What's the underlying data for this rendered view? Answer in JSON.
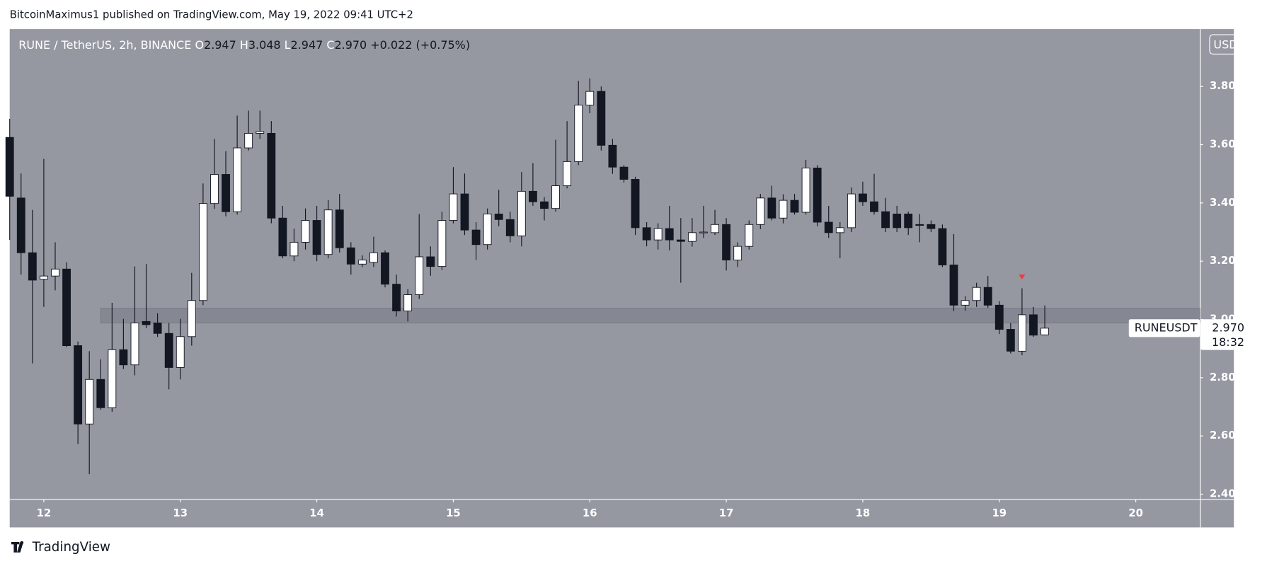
{
  "header": "BitcoinMaximus1 published on TradingView.com, May 19, 2022 09:41 UTC+2",
  "footer": "TradingView",
  "chart_data": {
    "type": "candlestick",
    "legend": {
      "symbol": "RUNE / TetherUS, 2h, BINANCE",
      "ohlc": [
        {
          "key": "O",
          "value": "2.947"
        },
        {
          "key": "H",
          "value": "3.048"
        },
        {
          "key": "L",
          "value": "2.947"
        },
        {
          "key": "C",
          "value": "2.970"
        }
      ],
      "change": "+0.022 (+0.75%)"
    },
    "currency": "USDT",
    "last_price_label": {
      "name": "RUNEUSDT",
      "value": "2.970",
      "countdown": "18:32"
    },
    "up_color": "#ffffff",
    "down_color": "#131722",
    "background": "#9598a1",
    "xlim": [
      11.75,
      20.47
    ],
    "xticks": [
      12,
      13,
      14,
      15,
      16,
      17,
      18,
      19,
      20
    ],
    "ylim": [
      2.383,
      3.997
    ],
    "yticks": [
      {
        "value": 2.4,
        "label": "2.400"
      },
      {
        "value": 2.6,
        "label": "2.600"
      },
      {
        "value": 2.8,
        "label": "2.800"
      },
      {
        "value": 3.0,
        "label": "3.000"
      },
      {
        "value": 3.2,
        "label": "3.200"
      },
      {
        "value": 3.4,
        "label": "3.400"
      },
      {
        "value": 3.6,
        "label": "3.600"
      },
      {
        "value": 3.8,
        "label": "3.800"
      }
    ],
    "zone": {
      "x_start": 12.4167,
      "low": 2.988,
      "high": 3.038,
      "color": "#787b86"
    },
    "marker": {
      "x": 19.1667,
      "y": 3.146,
      "color": "#f23645"
    },
    "x": [
      11.75,
      11.8333,
      11.9167,
      12,
      12.0833,
      12.1667,
      12.25,
      12.3333,
      12.4167,
      12.5,
      12.5833,
      12.6667,
      12.75,
      12.8333,
      12.9167,
      13,
      13.0833,
      13.1667,
      13.25,
      13.3333,
      13.4167,
      13.5,
      13.5833,
      13.6667,
      13.75,
      13.8333,
      13.9167,
      14,
      14.0833,
      14.1667,
      14.25,
      14.3333,
      14.4167,
      14.5,
      14.5833,
      14.6667,
      14.75,
      14.8333,
      14.9167,
      15,
      15.0833,
      15.1667,
      15.25,
      15.3333,
      15.4167,
      15.5,
      15.5833,
      15.6667,
      15.75,
      15.8333,
      15.9167,
      16,
      16.0833,
      16.1667,
      16.25,
      16.3333,
      16.4167,
      16.5,
      16.5833,
      16.6667,
      16.75,
      16.8333,
      16.9167,
      17,
      17.0833,
      17.1667,
      17.25,
      17.3333,
      17.4167,
      17.5,
      17.5833,
      17.6667,
      17.75,
      17.8333,
      17.9167,
      18,
      18.0833,
      18.1667,
      18.25,
      18.3333,
      18.4167,
      18.5,
      18.5833,
      18.6667,
      18.75,
      18.8333,
      18.9167,
      19,
      19.0833,
      19.1667,
      19.25,
      19.3333
    ],
    "open": [
      3.625,
      3.417,
      3.229,
      3.138,
      3.149,
      3.173,
      2.91,
      2.641,
      2.794,
      2.697,
      2.896,
      2.844,
      2.993,
      2.988,
      2.952,
      2.835,
      2.941,
      3.065,
      3.398,
      3.498,
      3.37,
      3.589,
      3.639,
      3.639,
      3.348,
      3.218,
      3.265,
      3.34,
      3.223,
      3.376,
      3.246,
      3.19,
      3.196,
      3.229,
      3.121,
      3.029,
      3.085,
      3.215,
      3.182,
      3.34,
      3.431,
      3.307,
      3.257,
      3.362,
      3.343,
      3.287,
      3.44,
      3.404,
      3.381,
      3.459,
      3.542,
      3.736,
      3.783,
      3.598,
      3.523,
      3.481,
      3.315,
      3.273,
      3.312,
      3.273,
      3.268,
      3.298,
      3.298,
      3.326,
      3.204,
      3.251,
      3.326,
      3.417,
      3.348,
      3.409,
      3.368,
      3.52,
      3.334,
      3.298,
      3.315,
      3.431,
      3.404,
      3.37,
      3.362,
      3.362,
      3.326,
      3.326,
      3.312,
      3.187,
      3.049,
      3.065,
      3.11,
      3.049,
      2.966,
      2.891,
      3.016,
      2.947
    ],
    "high": [
      3.689,
      3.501,
      3.376,
      3.551,
      3.265,
      3.196,
      2.924,
      2.891,
      2.863,
      3.057,
      3.002,
      3.182,
      3.19,
      3.021,
      2.988,
      3.002,
      3.16,
      3.467,
      3.62,
      3.578,
      3.7,
      3.717,
      3.717,
      3.681,
      3.39,
      3.312,
      3.381,
      3.39,
      3.41,
      3.431,
      3.265,
      3.22,
      3.284,
      3.237,
      3.154,
      3.104,
      3.362,
      3.251,
      3.37,
      3.523,
      3.501,
      3.334,
      3.381,
      3.445,
      3.37,
      3.506,
      3.537,
      3.42,
      3.617,
      3.681,
      3.819,
      3.828,
      3.8,
      3.62,
      3.53,
      3.49,
      3.334,
      3.33,
      3.39,
      3.348,
      3.348,
      3.39,
      3.376,
      3.348,
      3.265,
      3.34,
      3.431,
      3.459,
      3.43,
      3.431,
      3.548,
      3.53,
      3.39,
      3.334,
      3.453,
      3.473,
      3.5,
      3.417,
      3.39,
      3.37,
      3.362,
      3.34,
      3.326,
      3.293,
      3.08,
      3.126,
      3.149,
      3.063,
      2.988,
      3.107,
      3.043,
      3.048
    ],
    "low": [
      3.273,
      3.154,
      2.849,
      3.043,
      3.1,
      2.905,
      2.572,
      2.469,
      2.69,
      2.683,
      2.83,
      2.808,
      2.97,
      2.94,
      2.76,
      2.794,
      2.91,
      3.049,
      3.38,
      3.354,
      3.36,
      3.58,
      3.62,
      3.33,
      3.21,
      3.2,
      3.24,
      3.2,
      3.21,
      3.23,
      3.154,
      3.18,
      3.18,
      3.11,
      3.01,
      2.993,
      3.07,
      3.15,
      3.17,
      3.33,
      3.29,
      3.204,
      3.24,
      3.32,
      3.265,
      3.251,
      3.39,
      3.34,
      3.37,
      3.45,
      3.53,
      3.708,
      3.58,
      3.5,
      3.47,
      3.29,
      3.251,
      3.24,
      3.237,
      3.126,
      3.25,
      3.28,
      3.29,
      3.168,
      3.18,
      3.24,
      3.31,
      3.34,
      3.33,
      3.36,
      3.36,
      3.32,
      3.28,
      3.21,
      3.3,
      3.39,
      3.36,
      3.3,
      3.3,
      3.29,
      3.265,
      3.3,
      3.18,
      3.029,
      3.03,
      3.043,
      3.04,
      2.95,
      2.883,
      2.877,
      2.94,
      2.947
    ],
    "close": [
      3.423,
      3.229,
      3.135,
      3.149,
      3.173,
      2.91,
      2.641,
      2.794,
      2.697,
      2.896,
      2.844,
      2.988,
      2.982,
      2.952,
      2.835,
      2.941,
      3.065,
      3.398,
      3.498,
      3.37,
      3.589,
      3.639,
      3.645,
      3.348,
      3.218,
      3.265,
      3.34,
      3.223,
      3.376,
      3.246,
      3.19,
      3.204,
      3.229,
      3.121,
      3.029,
      3.085,
      3.215,
      3.182,
      3.34,
      3.431,
      3.307,
      3.257,
      3.362,
      3.343,
      3.287,
      3.44,
      3.404,
      3.381,
      3.459,
      3.542,
      3.736,
      3.783,
      3.598,
      3.523,
      3.481,
      3.315,
      3.273,
      3.312,
      3.273,
      3.268,
      3.298,
      3.3,
      3.326,
      3.204,
      3.251,
      3.326,
      3.417,
      3.348,
      3.409,
      3.368,
      3.52,
      3.334,
      3.298,
      3.315,
      3.431,
      3.404,
      3.37,
      3.315,
      3.315,
      3.315,
      3.323,
      3.312,
      3.187,
      3.049,
      3.065,
      3.11,
      3.049,
      2.966,
      2.891,
      3.016,
      2.946,
      2.97
    ]
  }
}
